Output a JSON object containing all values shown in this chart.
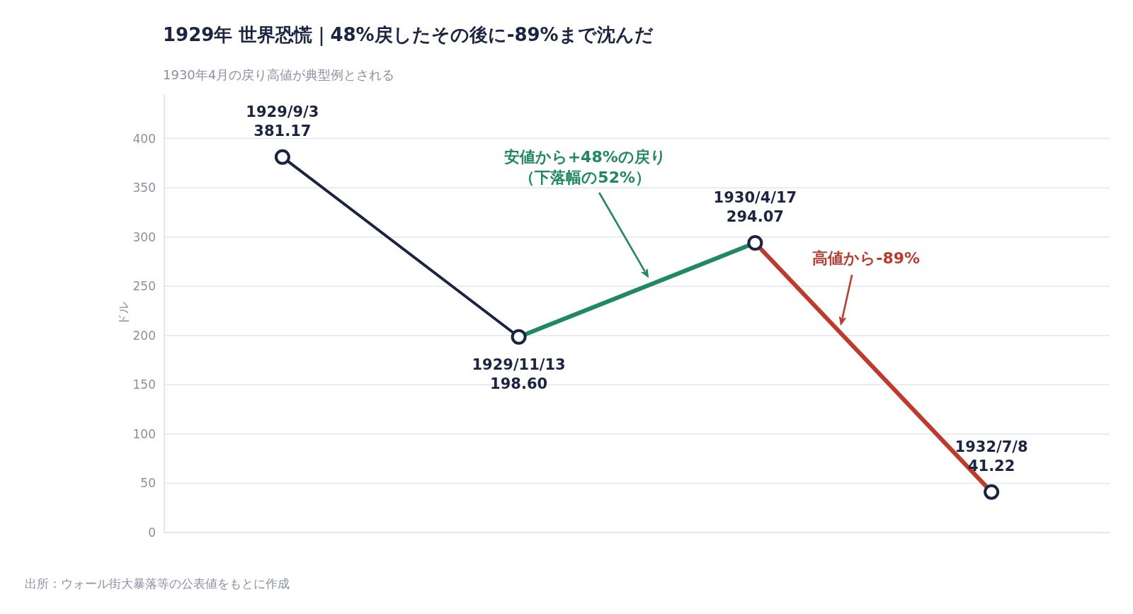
{
  "chart_data": {
    "type": "line",
    "title": "1929年 世界恐慌｜48%戻したその後に-89%まで沈んだ",
    "subtitle": "1930年4月の戻り高値が典型例とされる",
    "ylabel": "ドル",
    "categories": [
      null,
      null,
      null,
      null
    ],
    "series": [
      {
        "type": "line",
        "color": "#1b2440",
        "values": [
          381.17,
          198.6,
          null,
          null
        ]
      },
      {
        "type": "line",
        "color": "#1e8a5e",
        "values": [
          null,
          198.6,
          294.07,
          null
        ]
      },
      {
        "type": "line",
        "color": "#c0392b",
        "values": [
          null,
          null,
          294.07,
          41.22
        ]
      },
      {
        "type": "scatter",
        "color": "#1b2440",
        "marker": "circle",
        "values": [
          381.17,
          198.6,
          294.07,
          41.22
        ],
        "value_labels": [
          "1929/9/3\n381.17",
          "1929/11/13\n198.60",
          "1930/4/17\n294.07",
          "1932/7/8\n41.22"
        ]
      }
    ],
    "ylim": [
      0,
      445
    ],
    "yticks": [
      0,
      50,
      100,
      150,
      200,
      250,
      300,
      350,
      400
    ],
    "grid": "y",
    "annotations": [
      "安値から+48%の戻り",
      "（下落幅の52%）",
      "高値から-89%",
      "出所：ウォール街大暴落等の公表値をもとに作成"
    ]
  }
}
